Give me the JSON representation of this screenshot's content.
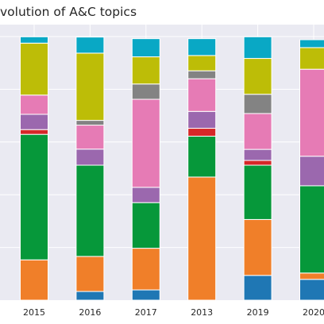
{
  "chart_data": {
    "type": "bar",
    "stacked": true,
    "normalized": true,
    "title": "volution of A&C topics",
    "xlabel": "",
    "ylabel": "",
    "ylim": [
      0,
      1
    ],
    "grid": true,
    "legend": "none",
    "categories": [
      "2015",
      "2016",
      "2017",
      "2013",
      "2019",
      "2020"
    ],
    "series": [
      {
        "color": "#1f77b4",
        "values": [
          0.0,
          0.033,
          0.039,
          0.0,
          0.094,
          0.079
        ]
      },
      {
        "color": "#f07f29",
        "values": [
          0.153,
          0.133,
          0.158,
          0.467,
          0.212,
          0.024
        ]
      },
      {
        "color": "#06983a",
        "values": [
          0.476,
          0.346,
          0.173,
          0.155,
          0.206,
          0.331
        ]
      },
      {
        "color": "#d62728",
        "values": [
          0.018,
          0.0,
          0.0,
          0.03,
          0.018,
          0.0
        ]
      },
      {
        "color": "#9b68ae",
        "values": [
          0.058,
          0.061,
          0.058,
          0.064,
          0.042,
          0.112
        ]
      },
      {
        "color": "#e67bb5",
        "values": [
          0.073,
          0.091,
          0.334,
          0.124,
          0.136,
          0.33
        ]
      },
      {
        "color": "#838383",
        "values": [
          0.0,
          0.018,
          0.058,
          0.03,
          0.073,
          0.0
        ]
      },
      {
        "color": "#bdbd07",
        "values": [
          0.197,
          0.255,
          0.103,
          0.058,
          0.136,
          0.082
        ]
      },
      {
        "color": "#09a8c5",
        "values": [
          0.024,
          0.061,
          0.069,
          0.064,
          0.082,
          0.03
        ]
      }
    ]
  }
}
